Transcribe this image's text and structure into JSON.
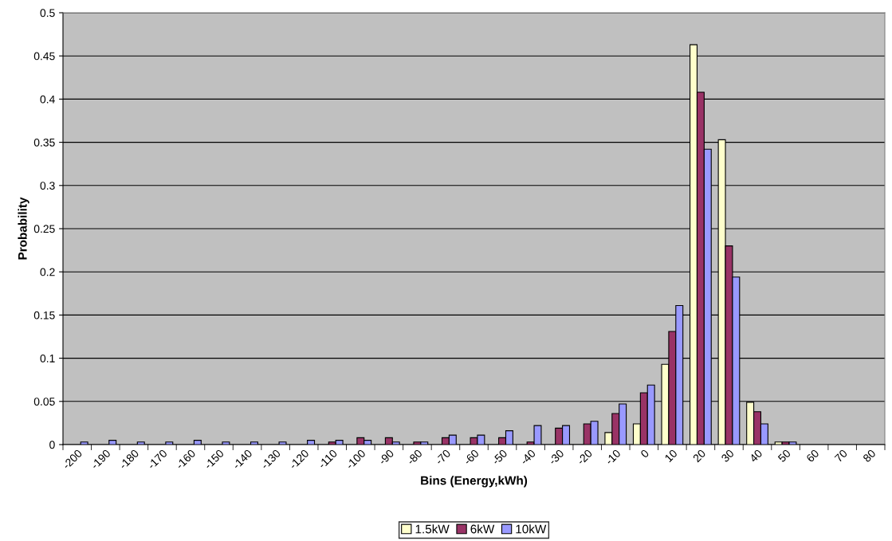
{
  "chart_data": {
    "type": "bar",
    "xlabel": "Bins (Energy,kWh)",
    "ylabel": "Probability",
    "categories": [
      "-200",
      "-190",
      "-180",
      "-170",
      "-160",
      "-150",
      "-140",
      "-130",
      "-120",
      "-110",
      "-100",
      "-90",
      "-80",
      "-70",
      "-60",
      "-50",
      "-40",
      "-30",
      "-20",
      "-10",
      "0",
      "10",
      "20",
      "30",
      "40",
      "50",
      "60",
      "70",
      "80"
    ],
    "series": [
      {
        "name": "1.5kW",
        "color": "#ffffcc",
        "values": [
          null,
          null,
          null,
          null,
          null,
          null,
          null,
          null,
          null,
          null,
          null,
          null,
          null,
          null,
          null,
          null,
          null,
          null,
          null,
          0.014,
          0.024,
          0.093,
          0.463,
          0.353,
          0.049,
          0.003,
          null,
          null,
          null
        ]
      },
      {
        "name": "6kW",
        "color": "#993366",
        "values": [
          null,
          null,
          null,
          null,
          null,
          null,
          null,
          null,
          null,
          0.003,
          0.008,
          0.008,
          0.003,
          0.008,
          0.008,
          0.008,
          0.003,
          0.019,
          0.024,
          0.036,
          0.06,
          0.131,
          0.408,
          0.23,
          0.038,
          0.003,
          null,
          null,
          null
        ]
      },
      {
        "name": "10kW",
        "color": "#9999ff",
        "values": [
          0.003,
          0.005,
          0.003,
          0.003,
          0.005,
          0.003,
          0.003,
          0.003,
          0.005,
          0.005,
          0.005,
          0.003,
          0.003,
          0.011,
          0.011,
          0.016,
          0.022,
          0.022,
          0.027,
          0.047,
          0.069,
          0.161,
          0.342,
          0.194,
          0.024,
          0.003,
          null,
          null,
          null
        ]
      }
    ],
    "ylim": [
      0,
      0.5
    ],
    "yticks": [
      0,
      0.05,
      0.1,
      0.15,
      0.2,
      0.25,
      0.3,
      0.35,
      0.4,
      0.45,
      0.5
    ],
    "grid": "y",
    "legend": "bottom"
  }
}
